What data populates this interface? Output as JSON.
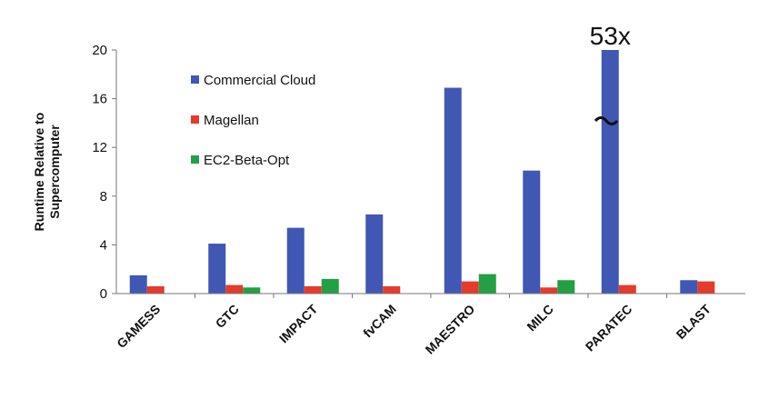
{
  "chart_data": {
    "type": "bar",
    "y_label": [
      "Runtime Relative to",
      "Supercomputer"
    ],
    "categories": [
      "GAMESS",
      "GTC",
      "IMPACT",
      "fvCAM",
      "MAESTRO",
      "MILC",
      "PARATEC",
      "BLAST"
    ],
    "series": [
      {
        "name": "Commercial Cloud",
        "color": "#4058b4",
        "values": [
          1.5,
          4.1,
          5.4,
          6.5,
          16.9,
          10.1,
          53,
          1.1
        ],
        "value_labels": [
          null,
          null,
          null,
          null,
          null,
          null,
          "53x",
          null
        ]
      },
      {
        "name": "Magellan",
        "color": "#e63a2a",
        "values": [
          0.6,
          0.7,
          0.6,
          0.6,
          1.0,
          0.5,
          0.7,
          1.0
        ]
      },
      {
        "name": "EC2-Beta-Opt",
        "color": "#22a043",
        "values": [
          null,
          0.5,
          1.2,
          null,
          1.6,
          1.1,
          null,
          null
        ]
      }
    ],
    "ylim": [
      0,
      20
    ],
    "yticks": [
      0,
      4,
      8,
      12,
      16,
      20
    ],
    "grid": false
  }
}
